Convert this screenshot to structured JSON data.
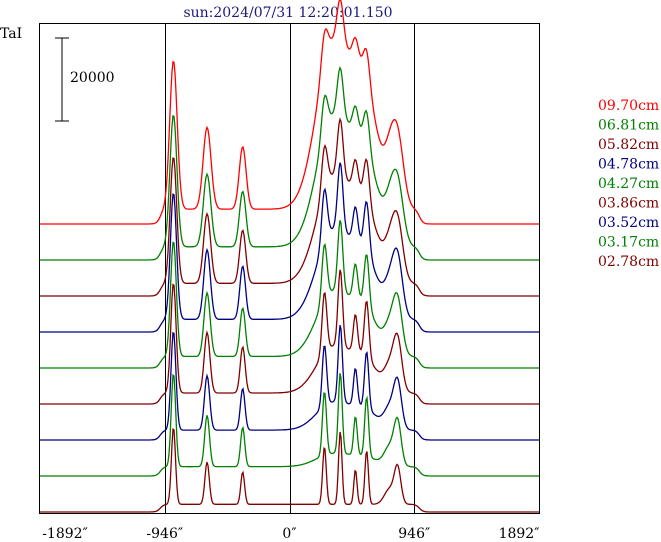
{
  "chart_data": {
    "type": "line",
    "title": "sun:2024/07/31 12:20:01.150",
    "ylabel": "TaI",
    "scale_bar_label": "20000",
    "x_ticks": [
      "-1892″",
      "-946″",
      "0″",
      "946″",
      "1892″"
    ],
    "x_tick_values": [
      -1892,
      -946,
      0,
      946,
      1892
    ],
    "xlim": [
      -1892,
      1892
    ],
    "vertical_lines_at": [
      -946,
      0,
      946
    ],
    "scale_bar_value": 20000,
    "series": [
      {
        "name": "09.70cm",
        "color": "#ff0000",
        "amplitude": 1.35
      },
      {
        "name": "06.81cm",
        "color": "#008000",
        "amplitude": 1.2
      },
      {
        "name": "05.82cm",
        "color": "#800000",
        "amplitude": 1.15
      },
      {
        "name": "04.78cm",
        "color": "#000080",
        "amplitude": 1.15
      },
      {
        "name": "04.27cm",
        "color": "#008000",
        "amplitude": 1.05
      },
      {
        "name": "03.86cm",
        "color": "#800000",
        "amplitude": 1.0
      },
      {
        "name": "03.52cm",
        "color": "#000080",
        "amplitude": 0.9
      },
      {
        "name": "03.17cm",
        "color": "#008000",
        "amplitude": 0.85
      },
      {
        "name": "02.78cm",
        "color": "#800000",
        "amplitude": 0.7
      }
    ]
  }
}
